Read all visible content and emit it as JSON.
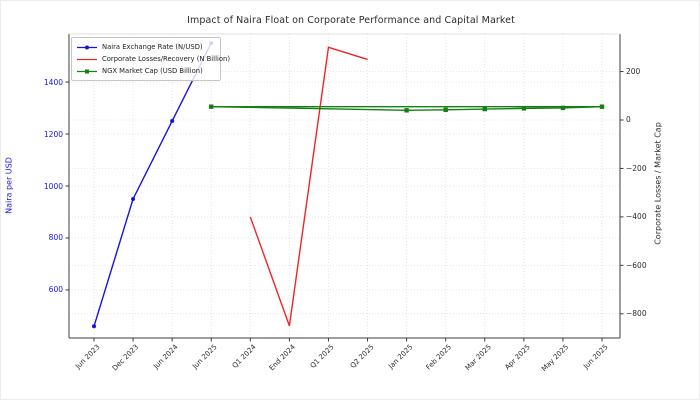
{
  "chart_data": {
    "type": "line",
    "title": "Impact of Naira Float on Corporate Performance and Capital Market",
    "categories": [
      "Jun 2023",
      "Dec 2023",
      "Jun 2024",
      "Jun 2025",
      "Q1 2024",
      "End 2024",
      "Q1 2025",
      "Q2 2025",
      "Jan 2025",
      "Feb 2025",
      "Mar 2025",
      "Apr 2025",
      "May 2025",
      "Jun 2025"
    ],
    "grid": true,
    "legend_position": "upper left",
    "left_axis": {
      "label": "Naira per USD",
      "color": "#1414e0",
      "ticks": [
        600,
        800,
        1000,
        1200,
        1400
      ],
      "range": [
        415,
        1585
      ]
    },
    "right_axis": {
      "label": "Corporate Losses / Market Cap",
      "color": "#2b2b2b",
      "ticks": [
        200,
        0,
        -200,
        -400,
        -600,
        -800
      ],
      "range": [
        -900,
        355
      ]
    },
    "series": [
      {
        "name": "Naira Exchange Rate (N/USD)",
        "color": "#1414e0",
        "marker": "circle",
        "axis": "left",
        "category_indices": [
          0,
          1,
          2,
          3
        ],
        "x_labels": [
          "Jun 2023",
          "Dec 2023",
          "Jun 2024",
          "Jun 2025"
        ],
        "values": [
          460,
          950,
          1250,
          1550
        ]
      },
      {
        "name": "Corporate Losses/Recovery (N Billion)",
        "color": "#ee2525",
        "marker": "none",
        "axis": "right",
        "category_indices": [
          4,
          5,
          6,
          7
        ],
        "x_labels": [
          "Q1 2024",
          "End 2024",
          "Q1 2025",
          "Q2 2025"
        ],
        "values": [
          -400,
          -850,
          300,
          250
        ]
      },
      {
        "name": "NGX Market Cap (USD Billion)",
        "color": "#128012",
        "marker": "square",
        "axis": "right",
        "connect_ends": true,
        "category_indices": [
          3,
          8,
          9,
          10,
          11,
          12,
          13
        ],
        "x_labels": [
          "Jun 2025",
          "Jan 2025",
          "Feb 2025",
          "Mar 2025",
          "Apr 2025",
          "May 2025",
          "Jun 2025"
        ],
        "values": [
          55,
          40,
          42,
          45,
          48,
          50,
          55
        ]
      }
    ]
  }
}
